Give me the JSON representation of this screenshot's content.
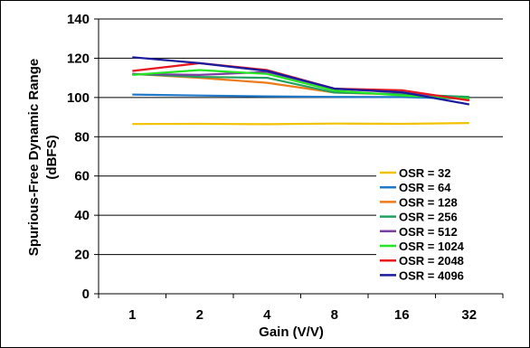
{
  "chart_data": {
    "type": "line",
    "title": "",
    "xlabel": "Gain (V/V)",
    "ylabel_lines": [
      "Spurious-Free Dynamic Range",
      "(dBFS)"
    ],
    "categories": [
      "1",
      "2",
      "4",
      "8",
      "16",
      "32"
    ],
    "ylim": [
      0,
      140
    ],
    "yticks": [
      0,
      20,
      40,
      60,
      80,
      100,
      120,
      140
    ],
    "grid": "horizontal",
    "legend_position": "bottom-right",
    "series": [
      {
        "name": "OSR = 32",
        "color": "#f2c200",
        "values": [
          86.5,
          86.6,
          86.4,
          86.7,
          86.6,
          87.0
        ]
      },
      {
        "name": "OSR = 64",
        "color": "#1f78c8",
        "values": [
          101.5,
          101.0,
          100.6,
          100.3,
          100.2,
          99.4
        ]
      },
      {
        "name": "OSR = 128",
        "color": "#f07a1a",
        "values": [
          112.0,
          110.0,
          107.5,
          102.5,
          101.5,
          99.0
        ]
      },
      {
        "name": "OSR = 256",
        "color": "#21a060",
        "values": [
          112.0,
          110.5,
          110.0,
          102.5,
          101.7,
          100.3
        ]
      },
      {
        "name": "OSR = 512",
        "color": "#7b3fa0",
        "values": [
          112.0,
          111.5,
          113.0,
          104.5,
          102.5,
          99.0
        ]
      },
      {
        "name": "OSR = 1024",
        "color": "#22e622",
        "values": [
          111.5,
          114.0,
          112.0,
          103.5,
          101.0,
          99.4
        ]
      },
      {
        "name": "OSR = 2048",
        "color": "#e8141e",
        "values": [
          113.5,
          117.5,
          114.0,
          104.5,
          103.7,
          98.5
        ]
      },
      {
        "name": "OSR = 4096",
        "color": "#1a1a9e",
        "values": [
          120.5,
          117.5,
          113.5,
          104.5,
          102.7,
          96.5
        ]
      }
    ]
  }
}
